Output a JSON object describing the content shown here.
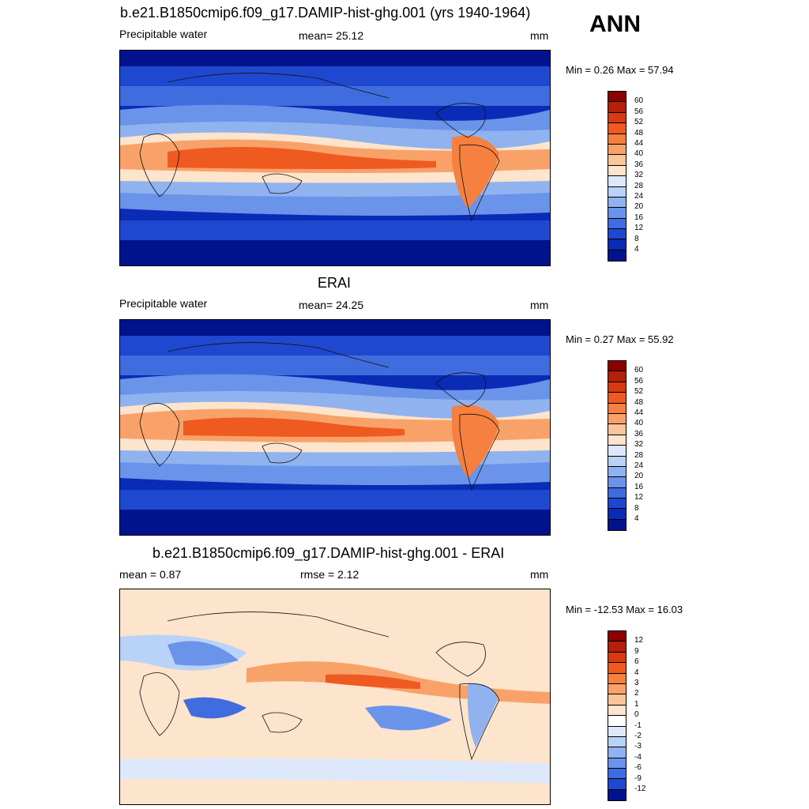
{
  "season": "ANN",
  "panels": [
    {
      "title": "b.e21.B1850cmip6.f09_g17.DAMIP-hist-ghg.001 (yrs 1940-1964)",
      "variable": "Precipitable water",
      "stat": "mean=  25.12",
      "units": "mm",
      "minmax": "Min =   0.26 Max =  57.94",
      "colorbar": {
        "levels": [
          "60",
          "56",
          "52",
          "48",
          "44",
          "40",
          "36",
          "32",
          "28",
          "24",
          "20",
          "16",
          "12",
          "8",
          "4"
        ],
        "colors": [
          "#8b0000",
          "#b5200a",
          "#d83a12",
          "#ef5a20",
          "#f5803f",
          "#f8a26a",
          "#fbc59c",
          "#fde4cc",
          "#dde9fb",
          "#b9d2f7",
          "#90b3ef",
          "#6a93ea",
          "#3f6ddf",
          "#1f48d0",
          "#0a2bb5",
          "#01138c"
        ]
      }
    },
    {
      "title": "ERAI",
      "variable": "Precipitable water",
      "stat": "mean=  24.25",
      "units": "mm",
      "minmax": "Min =   0.27 Max =  55.92",
      "colorbar": {
        "levels": [
          "60",
          "56",
          "52",
          "48",
          "44",
          "40",
          "36",
          "32",
          "28",
          "24",
          "20",
          "16",
          "12",
          "8",
          "4"
        ],
        "colors": [
          "#8b0000",
          "#b5200a",
          "#d83a12",
          "#ef5a20",
          "#f5803f",
          "#f8a26a",
          "#fbc59c",
          "#fde4cc",
          "#dde9fb",
          "#b9d2f7",
          "#90b3ef",
          "#6a93ea",
          "#3f6ddf",
          "#1f48d0",
          "#0a2bb5",
          "#01138c"
        ]
      }
    },
    {
      "title": "b.e21.B1850cmip6.f09_g17.DAMIP-hist-ghg.001 - ERAI",
      "stat_left": "mean =   0.87",
      "stat": "rmse =   2.12",
      "units": "mm",
      "minmax": "Min = -12.53 Max =  16.03",
      "colorbar": {
        "levels": [
          "12",
          "9",
          "6",
          "4",
          "3",
          "2",
          "1",
          "0",
          "-1",
          "-2",
          "-3",
          "-4",
          "-6",
          "-9",
          "-12"
        ],
        "colors": [
          "#8b0000",
          "#b5200a",
          "#d83a12",
          "#ef5a20",
          "#f5803f",
          "#f8a26a",
          "#fbc59c",
          "#fde4cc",
          "#ffffff",
          "#dde9fb",
          "#b9d2f7",
          "#90b3ef",
          "#6a93ea",
          "#3f6ddf",
          "#1f48d0",
          "#01138c"
        ]
      }
    }
  ]
}
